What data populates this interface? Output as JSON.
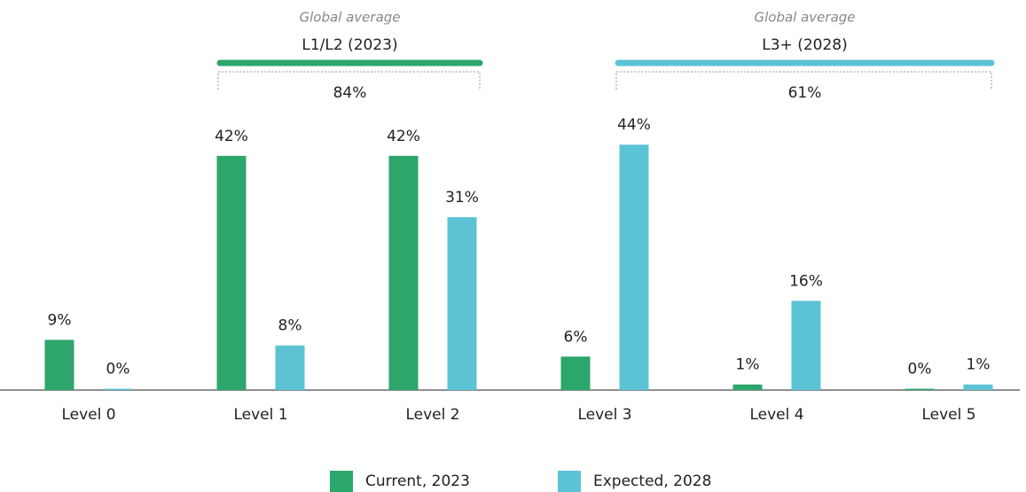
{
  "chart_data": {
    "type": "bar",
    "categories": [
      "Level 0",
      "Level 1",
      "Level 2",
      "Level 3",
      "Level 4",
      "Level 5"
    ],
    "series": [
      {
        "name": "Current, 2023",
        "color": "#2ca66b",
        "values": [
          9,
          42,
          42,
          6,
          1,
          0
        ],
        "value_labels": [
          "9%",
          "42%",
          "42%",
          "6%",
          "1%",
          "0%"
        ]
      },
      {
        "name": "Expected, 2028",
        "color": "#5bc3d4",
        "values": [
          0,
          8,
          31,
          44,
          16,
          1
        ],
        "value_labels": [
          "0%",
          "8%",
          "31%",
          "44%",
          "16%",
          "1%"
        ]
      }
    ],
    "annotations": [
      {
        "caption": "Global average",
        "title": "L1/L2 (2023)",
        "label": "84%"
      },
      {
        "caption": "Global average",
        "title": "L3+ (2028)",
        "label": "61%"
      }
    ],
    "legend": "bottom"
  }
}
